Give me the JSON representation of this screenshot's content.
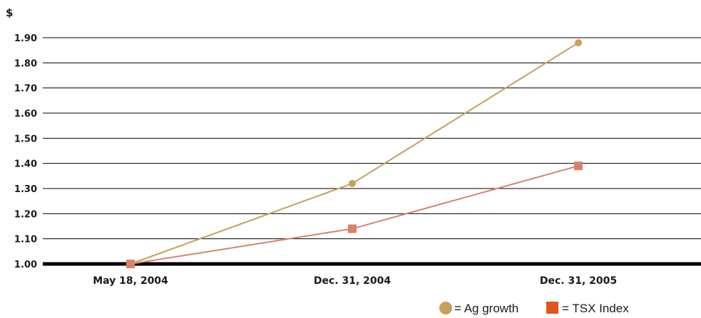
{
  "chart_data": {
    "type": "line",
    "ylabel": "$",
    "ylim": [
      1.0,
      1.9
    ],
    "yticks": [
      "1.00",
      "1.10",
      "1.20",
      "1.30",
      "1.40",
      "1.50",
      "1.60",
      "1.70",
      "1.80",
      "1.90"
    ],
    "grid": true,
    "legend_position": "bottom-right",
    "categories": [
      "May 18, 2004",
      "Dec. 31, 2004",
      "Dec. 31, 2005"
    ],
    "series": [
      {
        "name": "Ag growth",
        "legend_label": "= Ag growth",
        "marker": "circle",
        "line_color": "#c4a25a",
        "marker_color": "#c4a25a",
        "legend_color": "#c4a25a",
        "values": [
          1.0,
          1.32,
          1.88
        ]
      },
      {
        "name": "TSX Index",
        "legend_label": "= TSX Index",
        "marker": "square",
        "line_color": "#d9826a",
        "marker_color": "#d9826a",
        "legend_color": "#e0561e",
        "values": [
          1.0,
          1.14,
          1.39
        ]
      }
    ]
  }
}
